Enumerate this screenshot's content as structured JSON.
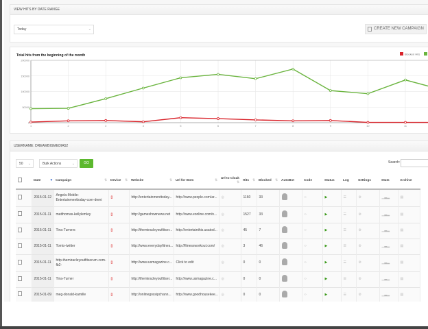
{
  "date_panel": {
    "title": "VIEW HITS BY DATE RANGE",
    "range_value": "Today",
    "create_button": "CREATE NEW CAMPAIGN"
  },
  "chart": {
    "title": "Total hits from the beginning of the month"
  },
  "chart_data": {
    "type": "line",
    "title": "Total hits from the beginning of the month",
    "x": [
      1,
      2,
      3,
      4,
      5,
      6,
      7,
      8,
      9,
      10,
      11,
      12
    ],
    "xticks": [
      "1",
      "2",
      "3",
      "4",
      "5",
      "6",
      "7",
      "8",
      "9",
      "10",
      "11"
    ],
    "yticks": [
      "0",
      "50000",
      "100000",
      "150000",
      "200000"
    ],
    "ylim": [
      0,
      200000
    ],
    "grid": true,
    "legend": "top-right",
    "series": [
      {
        "name": "Blocked Hits",
        "color": "#d9242b",
        "values": [
          2000,
          6000,
          7000,
          3000,
          16000,
          13000,
          9000,
          6000,
          7000,
          1000,
          1000,
          1000
        ]
      },
      {
        "name": "Visits",
        "color": "#6ab43e",
        "values": [
          45000,
          46000,
          77000,
          111000,
          144000,
          155000,
          141000,
          172000,
          103000,
          93000,
          137000,
          105000
        ]
      }
    ]
  },
  "table_panel": {
    "title": "USERNAME: DREAMBIGMEDIA52",
    "page_size": "50",
    "bulk_actions": "Bulk Actions",
    "go": "GO",
    "search_label": "Search:"
  },
  "columns": [
    "Date",
    "Campaign",
    "Device",
    "Website",
    "Url for Bots",
    "Url to Cloak",
    "Hits",
    "Blocked",
    "AutoBot",
    "Code",
    "Status",
    "Log",
    "Settings",
    "Stats",
    "Archive"
  ],
  "rows": [
    {
      "date": "2015-01-12",
      "campaign": "Angela-Mobile-Entertainmenttoday-com-demi",
      "website": "http://entertainmenttoday...",
      "url_bots": "http://www.people.com/ar...",
      "hits": "1160",
      "blocked": "33"
    },
    {
      "date": "2015-01-11",
      "campaign": "matthomas-kellylemley",
      "website": "http://gameshownews.net",
      "url_bots": "http://www.eonline.com/n...",
      "hits": "1527",
      "blocked": "33"
    },
    {
      "date": "2015-01-11",
      "campaign": "Tina-Turners",
      "website": "http://themiracleyoutfitser...",
      "url_bots": "http://entertainthis.usatod...",
      "hits": "45",
      "blocked": "7"
    },
    {
      "date": "2015-01-11",
      "campaign": "Tomix-twitter",
      "website": "http://www.everydayfitnes...",
      "url_bots": "http://fitnessworkout.com/",
      "hits": "3",
      "blocked": "46"
    },
    {
      "date": "2015-01-11",
      "campaign": "http-themiracleyoutfitserum-com-fb2-",
      "website": "http://www.usmagazine.c...",
      "url_bots": "Click to edit",
      "hits": "0",
      "blocked": "0"
    },
    {
      "date": "2015-01-11",
      "campaign": "Tina-Turner",
      "website": "http://themiracleyoutfitser...",
      "url_bots": "http://www.usmagazine.c...",
      "hits": "0",
      "blocked": "0"
    },
    {
      "date": "2015-01-09",
      "campaign": "meg-donald-kamille",
      "website": "http://onlinegossipchann...",
      "url_bots": "http://www.goodhousekee...",
      "hits": "0",
      "blocked": "0"
    }
  ]
}
